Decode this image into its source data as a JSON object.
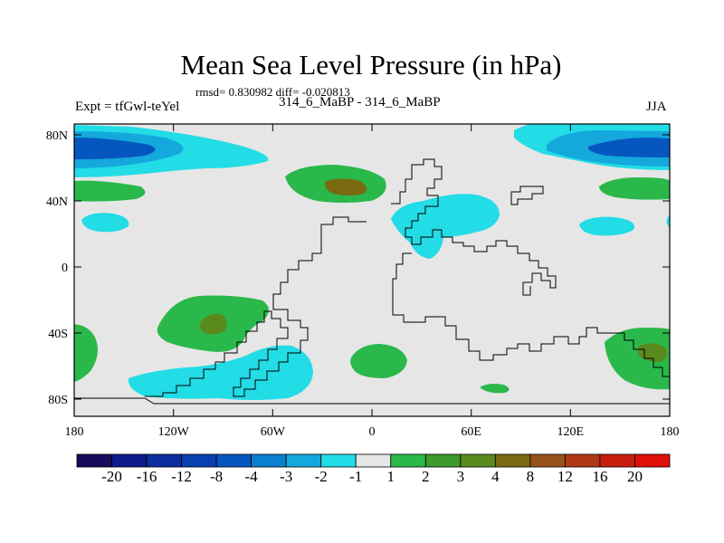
{
  "title": "Mean Sea Level Pressure (in hPa)",
  "stats": "rmsd= 0.830982 diff= -0.020813",
  "subtitle": "314_6_MaBP - 314_6_MaBP",
  "experiment": "Expt = tfGwl-teYel",
  "season": "JJA",
  "axes": {
    "x_ticks": [
      "180",
      "120W",
      "60W",
      "0",
      "60E",
      "120E",
      "180"
    ],
    "y_ticks": [
      "80N",
      "40N",
      "0",
      "40S",
      "80S"
    ]
  },
  "colorbar": {
    "labels": [
      "-20",
      "-16",
      "-12",
      "-8",
      "-4",
      "-3",
      "-2",
      "-1",
      "1",
      "2",
      "3",
      "4",
      "8",
      "12",
      "16",
      "20"
    ],
    "colors": [
      "#1a0a5a",
      "#0c1c8c",
      "#0a2e9e",
      "#0840b0",
      "#0656c0",
      "#0a80d0",
      "#14a8dc",
      "#22dce6",
      "#e6e6e6",
      "#2ab84a",
      "#3e9a2a",
      "#5a8a1e",
      "#7a6a10",
      "#98501a",
      "#b03816",
      "#c81e10",
      "#e01008"
    ]
  },
  "legend_colors": {
    "ocean": "#e6e6e6",
    "cyan": "#22dce6",
    "blue_mid": "#14a8dc",
    "blue_dark": "#0656c0",
    "green": "#2ab84a",
    "olive": "#5a8a1e",
    "brown": "#7a6a10",
    "coast": "#000000"
  }
}
